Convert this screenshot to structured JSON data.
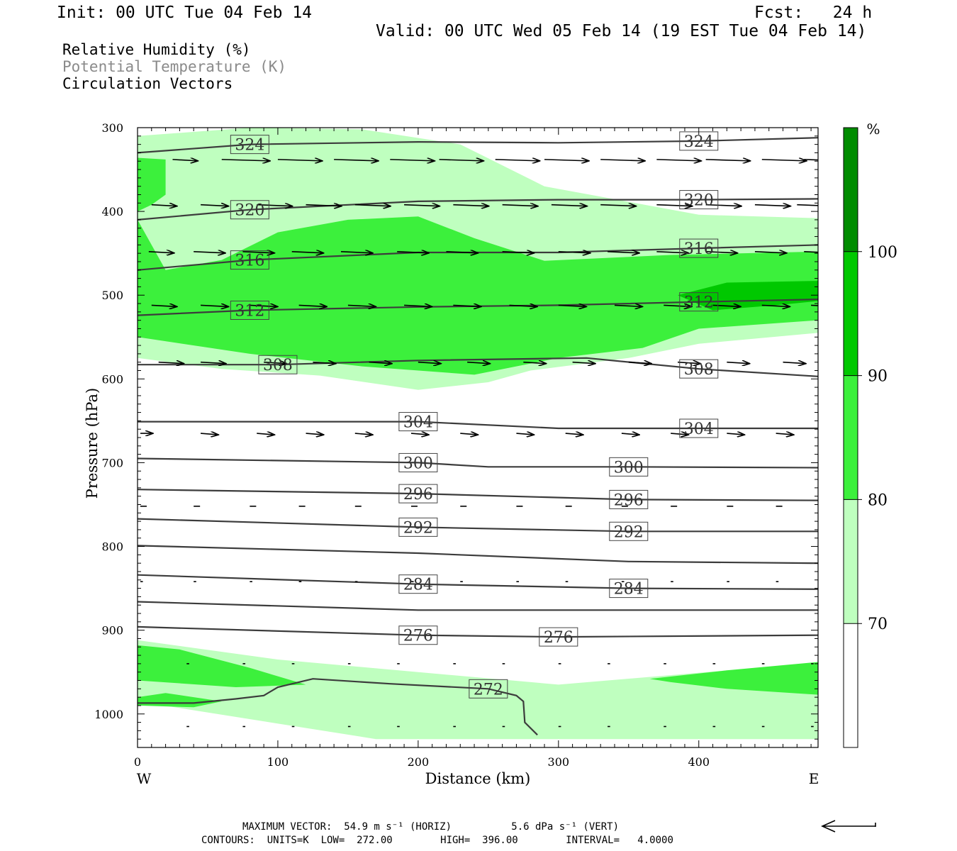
{
  "header": {
    "init": "Init: 00 UTC Tue 04 Feb 14",
    "fcst": "Fcst:   24 h",
    "valid": "Valid: 00 UTC Wed 05 Feb 14 (19 EST Tue 04 Feb 14)"
  },
  "legend": {
    "rh": "Relative Humidity (%)",
    "theta": "Potential Temperature (K)",
    "vectors": "Circulation Vectors"
  },
  "footer": {
    "line1": "MAXIMUM VECTOR:  54.9 m s⁻¹ (HORIZ)          5.6 dPa s⁻¹ (VERT)",
    "line2": "CONTOURS:  UNITS=K  LOW=  272.00        HIGH=  396.00        INTERVAL=   4.0000"
  },
  "colors": {
    "rh_70_80": "#bfffbf",
    "rh_80_90": "#3cf03c",
    "rh_90_100": "#00c800",
    "rh_100": "#008c00",
    "contour": "#3c3c3c"
  },
  "chart_data": {
    "type": "cross-section",
    "xlabel": "Distance (km)",
    "ylabel": "Pressure (hPa)",
    "xlim": [
      0,
      485
    ],
    "ylim": [
      1040,
      300
    ],
    "x_ticks": [
      "0",
      "100",
      "200",
      "300",
      "400"
    ],
    "y_ticks": [
      "300",
      "400",
      "500",
      "600",
      "700",
      "800",
      "900",
      "1000"
    ],
    "x_end_labels": {
      "left": "W",
      "right": "E"
    },
    "colorbar": {
      "unit": "%",
      "levels": [
        "70",
        "80",
        "90",
        "100"
      ]
    },
    "theta_contours": [
      {
        "value": 324,
        "label": "324",
        "pts": [
          [
            0,
            330
          ],
          [
            80,
            320
          ],
          [
            200,
            317
          ],
          [
            300,
            318
          ],
          [
            400,
            316
          ],
          [
            485,
            312
          ]
        ]
      },
      {
        "value": 320,
        "label": "320",
        "pts": [
          [
            0,
            410
          ],
          [
            80,
            398
          ],
          [
            200,
            388
          ],
          [
            300,
            386
          ],
          [
            400,
            386
          ],
          [
            485,
            385
          ]
        ]
      },
      {
        "value": 316,
        "label": "316",
        "pts": [
          [
            0,
            470
          ],
          [
            80,
            458
          ],
          [
            200,
            449
          ],
          [
            300,
            449
          ],
          [
            400,
            444
          ],
          [
            485,
            440
          ]
        ]
      },
      {
        "value": 312,
        "label": "312",
        "pts": [
          [
            0,
            524
          ],
          [
            80,
            518
          ],
          [
            200,
            514
          ],
          [
            300,
            512
          ],
          [
            400,
            508
          ],
          [
            485,
            505
          ]
        ]
      },
      {
        "value": 308,
        "label": "308",
        "pts": [
          [
            0,
            583
          ],
          [
            100,
            583
          ],
          [
            200,
            578
          ],
          [
            320,
            575
          ],
          [
            400,
            588
          ],
          [
            485,
            597
          ]
        ]
      },
      {
        "value": 304,
        "label": "304",
        "pts": [
          [
            0,
            651
          ],
          [
            200,
            651
          ],
          [
            300,
            659
          ],
          [
            400,
            659
          ],
          [
            485,
            659
          ]
        ]
      },
      {
        "value": 300,
        "label": "300",
        "pts": [
          [
            0,
            695
          ],
          [
            200,
            700
          ],
          [
            250,
            705
          ],
          [
            350,
            705
          ],
          [
            485,
            706
          ]
        ]
      },
      {
        "value": 296,
        "label": "296",
        "pts": [
          [
            0,
            732
          ],
          [
            200,
            737
          ],
          [
            350,
            744
          ],
          [
            485,
            745
          ]
        ]
      },
      {
        "value": 292,
        "label": "292",
        "pts": [
          [
            0,
            767
          ],
          [
            200,
            777
          ],
          [
            350,
            782
          ],
          [
            485,
            782
          ]
        ]
      },
      {
        "value": 288,
        "label": "",
        "pts": [
          [
            0,
            799
          ],
          [
            200,
            808
          ],
          [
            350,
            818
          ],
          [
            485,
            820
          ]
        ]
      },
      {
        "value": 284,
        "label": "284",
        "pts": [
          [
            0,
            834
          ],
          [
            200,
            845
          ],
          [
            350,
            850
          ],
          [
            485,
            851
          ]
        ]
      },
      {
        "value": 280,
        "label": "",
        "pts": [
          [
            0,
            866
          ],
          [
            200,
            876
          ],
          [
            300,
            876
          ],
          [
            485,
            876
          ]
        ]
      },
      {
        "value": 276,
        "label": "276",
        "pts": [
          [
            0,
            896
          ],
          [
            200,
            906
          ],
          [
            300,
            908
          ],
          [
            485,
            906
          ]
        ]
      },
      {
        "value": 272,
        "label": "272",
        "pts": [
          [
            0,
            987
          ],
          [
            40,
            987
          ],
          [
            70,
            982
          ],
          [
            90,
            978
          ],
          [
            100,
            968
          ],
          [
            125,
            958
          ],
          [
            180,
            964
          ],
          [
            250,
            970
          ],
          [
            270,
            978
          ],
          [
            275,
            985
          ],
          [
            276,
            1010
          ],
          [
            285,
            1025
          ]
        ]
      }
    ],
    "rh_regions": [
      {
        "level": "70-80",
        "pts": [
          [
            0,
            310
          ],
          [
            80,
            300
          ],
          [
            160,
            302
          ],
          [
            230,
            320
          ],
          [
            290,
            370
          ],
          [
            400,
            404
          ],
          [
            485,
            408
          ],
          [
            485,
            545
          ],
          [
            400,
            558
          ],
          [
            350,
            575
          ],
          [
            280,
            590
          ],
          [
            250,
            604
          ],
          [
            200,
            613
          ],
          [
            130,
            596
          ],
          [
            60,
            588
          ],
          [
            0,
            575
          ],
          [
            0,
            310
          ]
        ]
      },
      {
        "level": "80-90",
        "pts": [
          [
            0,
            336
          ],
          [
            20,
            338
          ],
          [
            20,
            380
          ],
          [
            10,
            392
          ],
          [
            0,
            400
          ]
        ]
      },
      {
        "level": "80-90",
        "pts": [
          [
            0,
            410
          ],
          [
            20,
            470
          ],
          [
            60,
            458
          ],
          [
            100,
            425
          ],
          [
            150,
            410
          ],
          [
            200,
            406
          ],
          [
            240,
            432
          ],
          [
            290,
            459
          ],
          [
            380,
            452
          ],
          [
            485,
            448
          ],
          [
            485,
            530
          ],
          [
            400,
            540
          ],
          [
            360,
            563
          ],
          [
            300,
            575
          ],
          [
            240,
            595
          ],
          [
            160,
            585
          ],
          [
            80,
            570
          ],
          [
            0,
            550
          ],
          [
            0,
            410
          ]
        ]
      },
      {
        "level": "90-100",
        "pts": [
          [
            385,
            500
          ],
          [
            420,
            485
          ],
          [
            485,
            483
          ],
          [
            485,
            507
          ],
          [
            455,
            512
          ],
          [
            410,
            518
          ],
          [
            385,
            500
          ]
        ]
      },
      {
        "level": "70-80",
        "pts": [
          [
            0,
            912
          ],
          [
            100,
            935
          ],
          [
            300,
            965
          ],
          [
            420,
            948
          ],
          [
            485,
            945
          ],
          [
            485,
            1030
          ],
          [
            350,
            1030
          ],
          [
            170,
            1030
          ],
          [
            0,
            985
          ]
        ]
      },
      {
        "level": "80-90",
        "pts": [
          [
            0,
            918
          ],
          [
            30,
            923
          ],
          [
            80,
            945
          ],
          [
            120,
            965
          ],
          [
            70,
            968
          ],
          [
            0,
            960
          ]
        ]
      },
      {
        "level": "80-90",
        "pts": [
          [
            0,
            980
          ],
          [
            20,
            975
          ],
          [
            60,
            985
          ],
          [
            40,
            992
          ],
          [
            0,
            990
          ]
        ]
      },
      {
        "level": "80-90",
        "pts": [
          [
            365,
            958
          ],
          [
            420,
            948
          ],
          [
            485,
            938
          ],
          [
            485,
            977
          ],
          [
            420,
            970
          ],
          [
            380,
            962
          ]
        ]
      }
    ],
    "vector_rows": [
      {
        "p": 338,
        "xs": [
          25,
          60,
          100,
          140,
          180,
          215,
          255,
          290,
          330,
          370,
          405,
          445,
          475
        ],
        "len": [
          20,
          38,
          35,
          35,
          35,
          35,
          35,
          35,
          35,
          35,
          35,
          35,
          33
        ]
      },
      {
        "p": 392,
        "xs": [
          10,
          45,
          85,
          120,
          155,
          190,
          225,
          260,
          295,
          330,
          370,
          405,
          440,
          470
        ],
        "len": [
          20,
          22,
          28,
          28,
          28,
          28,
          28,
          28,
          28,
          28,
          28,
          28,
          28,
          28
        ]
      },
      {
        "p": 448,
        "xs": [
          8,
          40,
          75,
          110,
          145,
          185,
          220,
          260,
          300,
          335,
          370,
          405,
          440,
          475
        ],
        "len": [
          20,
          25,
          25,
          25,
          25,
          25,
          25,
          25,
          25,
          25,
          25,
          25,
          25,
          25
        ]
      },
      {
        "p": 512,
        "xs": [
          10,
          45,
          80,
          115,
          150,
          190,
          225,
          265,
          300,
          340,
          375,
          410,
          445,
          480
        ],
        "len": [
          20,
          22,
          22,
          22,
          22,
          22,
          22,
          22,
          22,
          22,
          22,
          22,
          22,
          22
        ]
      },
      {
        "p": 580,
        "xs": [
          15,
          45,
          90,
          125,
          165,
          200,
          235,
          275,
          310,
          350,
          385,
          420,
          460
        ],
        "len": [
          20,
          20,
          18,
          18,
          18,
          18,
          18,
          18,
          18,
          18,
          18,
          18,
          18
        ]
      },
      {
        "p": 665,
        "xs": [
          2,
          45,
          85,
          120,
          155,
          195,
          230,
          270,
          305,
          345,
          380,
          420,
          455
        ],
        "len": [
          10,
          14,
          14,
          14,
          14,
          14,
          14,
          14,
          14,
          14,
          14,
          14,
          14
        ]
      },
      {
        "p": 752,
        "xs": [
          2,
          40,
          80,
          115,
          155,
          195,
          230,
          270,
          305,
          345,
          380,
          420,
          455
        ],
        "len": [
          5,
          5,
          5,
          5,
          5,
          5,
          5,
          5,
          5,
          5,
          5,
          5,
          5
        ]
      },
      {
        "p": 842,
        "xs": [
          2,
          40,
          80,
          115,
          155,
          195,
          230,
          270,
          305,
          345,
          380,
          420,
          455
        ],
        "len": [
          2,
          2,
          2,
          2,
          2,
          2,
          2,
          2,
          2,
          2,
          2,
          2,
          2
        ]
      },
      {
        "p": 940,
        "xs": [
          35,
          75,
          110,
          150,
          185,
          225,
          260,
          300,
          335,
          375,
          410,
          445,
          480
        ],
        "len": [
          2,
          2,
          2,
          2,
          2,
          2,
          2,
          2,
          2,
          2,
          2,
          2,
          2
        ]
      },
      {
        "p": 1015,
        "xs": [
          35,
          75,
          110,
          150,
          185,
          225,
          260,
          300,
          335,
          375,
          410,
          445,
          480
        ],
        "len": [
          2,
          2,
          2,
          2,
          2,
          2,
          2,
          2,
          2,
          2,
          2,
          2,
          2
        ]
      }
    ]
  }
}
